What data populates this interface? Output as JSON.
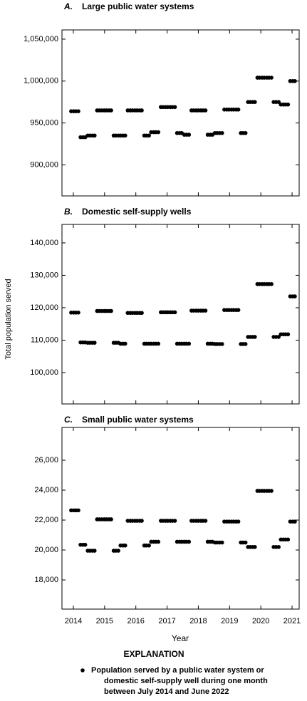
{
  "chart_data": [
    {
      "type": "scatter",
      "label": "A.",
      "title": "Large public water systems",
      "color": "#000000",
      "x": [
        2013.93,
        2014.01,
        2014.08,
        2014.16,
        2014.23,
        2014.31,
        2014.38,
        2014.46,
        2014.53,
        2014.61,
        2014.68,
        2014.76,
        2014.83,
        2014.91,
        2014.99,
        2015.06,
        2015.14,
        2015.21,
        2015.29,
        2015.36,
        2015.44,
        2015.51,
        2015.59,
        2015.66,
        2015.74,
        2015.82,
        2015.89,
        2015.97,
        2016.04,
        2016.12,
        2016.19,
        2016.27,
        2016.34,
        2016.42,
        2016.49,
        2016.57,
        2016.64,
        2016.72,
        2016.8,
        2016.87,
        2016.95,
        2017.02,
        2017.1,
        2017.17,
        2017.25,
        2017.32,
        2017.4,
        2017.47,
        2017.55,
        2017.62,
        2017.7,
        2017.78,
        2017.85,
        2017.93,
        2018.0,
        2018.08,
        2018.15,
        2018.23,
        2018.3,
        2018.38,
        2018.45,
        2018.53,
        2018.6,
        2018.68,
        2018.76,
        2018.83,
        2018.91,
        2018.98,
        2019.06,
        2019.13,
        2019.21,
        2019.28,
        2019.36,
        2019.43,
        2019.51,
        2019.59,
        2019.66,
        2019.74,
        2019.81,
        2019.89,
        2019.96,
        2020.04,
        2020.11,
        2020.19,
        2020.26,
        2020.34,
        2020.41,
        2020.49,
        2020.57,
        2020.64,
        2020.72,
        2020.79,
        2020.87,
        2020.94,
        2021.02,
        2021.09
      ],
      "values": [
        964000,
        964000,
        964000,
        964000,
        933000,
        933000,
        933000,
        935000,
        935000,
        935000,
        935000,
        965000,
        965000,
        965000,
        965000,
        965000,
        965000,
        965000,
        935000,
        935000,
        935000,
        935000,
        935000,
        935000,
        965000,
        965000,
        965000,
        965000,
        965000,
        965000,
        965000,
        935000,
        935000,
        935000,
        939000,
        939000,
        939000,
        939000,
        969000,
        969000,
        969000,
        969000,
        969000,
        969000,
        969000,
        938000,
        938000,
        938000,
        936000,
        936000,
        936000,
        965000,
        965000,
        965000,
        965000,
        965000,
        965000,
        965000,
        936000,
        936000,
        936000,
        938000,
        938000,
        938000,
        938000,
        966000,
        966000,
        966000,
        966000,
        966000,
        966000,
        966000,
        938000,
        938000,
        938000,
        975000,
        975000,
        975000,
        975000,
        1004000,
        1004000,
        1004000,
        1004000,
        1004000,
        1004000,
        1004000,
        975000,
        975000,
        975000,
        972000,
        972000,
        972000,
        972000,
        1000000,
        1000000,
        1000000
      ],
      "xlim": [
        2013.636,
        2021.227
      ],
      "xticks": [
        2014,
        2015,
        2016,
        2017,
        2018,
        2019,
        2020,
        2021
      ],
      "ylim": [
        863000,
        1061000
      ],
      "yticks": [
        {
          "value": 900000,
          "label": "900,000"
        },
        {
          "value": 950000,
          "label": "950,000"
        },
        {
          "value": 1000000,
          "label": "1,000,000"
        },
        {
          "value": 1050000,
          "label": "1,050,000"
        }
      ]
    },
    {
      "type": "scatter",
      "label": "B.",
      "title": "Domestic self-supply wells",
      "color": "#000000",
      "x": [
        2013.93,
        2014.01,
        2014.08,
        2014.16,
        2014.23,
        2014.31,
        2014.38,
        2014.46,
        2014.53,
        2014.61,
        2014.68,
        2014.76,
        2014.83,
        2014.91,
        2014.99,
        2015.06,
        2015.14,
        2015.21,
        2015.29,
        2015.36,
        2015.44,
        2015.51,
        2015.59,
        2015.66,
        2015.74,
        2015.82,
        2015.89,
        2015.97,
        2016.04,
        2016.12,
        2016.19,
        2016.27,
        2016.34,
        2016.42,
        2016.49,
        2016.57,
        2016.64,
        2016.72,
        2016.8,
        2016.87,
        2016.95,
        2017.02,
        2017.1,
        2017.17,
        2017.25,
        2017.32,
        2017.4,
        2017.47,
        2017.55,
        2017.62,
        2017.7,
        2017.78,
        2017.85,
        2017.93,
        2018.0,
        2018.08,
        2018.15,
        2018.23,
        2018.3,
        2018.38,
        2018.45,
        2018.53,
        2018.6,
        2018.68,
        2018.76,
        2018.83,
        2018.91,
        2018.98,
        2019.06,
        2019.13,
        2019.21,
        2019.28,
        2019.36,
        2019.43,
        2019.51,
        2019.59,
        2019.66,
        2019.74,
        2019.81,
        2019.89,
        2019.96,
        2020.04,
        2020.11,
        2020.19,
        2020.26,
        2020.34,
        2020.41,
        2020.49,
        2020.57,
        2020.64,
        2020.72,
        2020.79,
        2020.87,
        2020.94,
        2021.02,
        2021.09
      ],
      "values": [
        118500,
        118500,
        118500,
        118500,
        109300,
        109300,
        109300,
        109200,
        109200,
        109200,
        109200,
        119000,
        119000,
        119000,
        119000,
        119000,
        119000,
        119000,
        109200,
        109200,
        109200,
        108900,
        108900,
        108900,
        118400,
        118400,
        118400,
        118400,
        118400,
        118400,
        118400,
        108900,
        108900,
        108900,
        108900,
        108900,
        108900,
        108900,
        118600,
        118600,
        118600,
        118600,
        118600,
        118600,
        118600,
        108900,
        108900,
        108900,
        108900,
        108900,
        108900,
        119100,
        119100,
        119100,
        119100,
        119100,
        119100,
        119100,
        108900,
        108900,
        108900,
        108800,
        108800,
        108800,
        108800,
        119300,
        119300,
        119300,
        119300,
        119300,
        119300,
        119300,
        108800,
        108800,
        108800,
        111000,
        111000,
        111000,
        111000,
        127300,
        127300,
        127300,
        127300,
        127300,
        127300,
        127300,
        111000,
        111000,
        111000,
        111800,
        111800,
        111800,
        111800,
        123500,
        123500,
        123500
      ],
      "xlim": [
        2013.636,
        2021.227
      ],
      "xticks": [
        2014,
        2015,
        2016,
        2017,
        2018,
        2019,
        2020,
        2021
      ],
      "ylim": [
        90330,
        145700
      ],
      "yticks": [
        {
          "value": 100000,
          "label": "100,000"
        },
        {
          "value": 110000,
          "label": "110,000"
        },
        {
          "value": 120000,
          "label": "120,000"
        },
        {
          "value": 130000,
          "label": "130,000"
        },
        {
          "value": 140000,
          "label": "140,000"
        }
      ]
    },
    {
      "type": "scatter",
      "label": "C.",
      "title": "Small public water systems",
      "color": "#000000",
      "x": [
        2013.93,
        2014.01,
        2014.08,
        2014.16,
        2014.23,
        2014.31,
        2014.38,
        2014.46,
        2014.53,
        2014.61,
        2014.68,
        2014.76,
        2014.83,
        2014.91,
        2014.99,
        2015.06,
        2015.14,
        2015.21,
        2015.29,
        2015.36,
        2015.44,
        2015.51,
        2015.59,
        2015.66,
        2015.74,
        2015.82,
        2015.89,
        2015.97,
        2016.04,
        2016.12,
        2016.19,
        2016.27,
        2016.34,
        2016.42,
        2016.49,
        2016.57,
        2016.64,
        2016.72,
        2016.8,
        2016.87,
        2016.95,
        2017.02,
        2017.1,
        2017.17,
        2017.25,
        2017.32,
        2017.4,
        2017.47,
        2017.55,
        2017.62,
        2017.7,
        2017.78,
        2017.85,
        2017.93,
        2018.0,
        2018.08,
        2018.15,
        2018.23,
        2018.3,
        2018.38,
        2018.45,
        2018.53,
        2018.6,
        2018.68,
        2018.76,
        2018.83,
        2018.91,
        2018.98,
        2019.06,
        2019.13,
        2019.21,
        2019.28,
        2019.36,
        2019.43,
        2019.51,
        2019.59,
        2019.66,
        2019.74,
        2019.81,
        2019.89,
        2019.96,
        2020.04,
        2020.11,
        2020.19,
        2020.26,
        2020.34,
        2020.41,
        2020.49,
        2020.57,
        2020.64,
        2020.72,
        2020.79,
        2020.87,
        2020.94,
        2021.02,
        2021.09
      ],
      "values": [
        22650,
        22650,
        22650,
        22650,
        20350,
        20350,
        20350,
        19950,
        19950,
        19950,
        19950,
        22050,
        22050,
        22050,
        22050,
        22050,
        22050,
        22050,
        19950,
        19950,
        19950,
        20300,
        20300,
        20300,
        21950,
        21950,
        21950,
        21950,
        21950,
        21950,
        21950,
        20300,
        20300,
        20300,
        20550,
        20550,
        20550,
        20550,
        21950,
        21950,
        21950,
        21950,
        21950,
        21950,
        21950,
        20550,
        20550,
        20550,
        20550,
        20550,
        20550,
        21950,
        21950,
        21950,
        21950,
        21950,
        21950,
        21950,
        20550,
        20550,
        20550,
        20500,
        20500,
        20500,
        20500,
        21900,
        21900,
        21900,
        21900,
        21900,
        21900,
        21900,
        20500,
        20500,
        20500,
        20200,
        20200,
        20200,
        20200,
        23950,
        23950,
        23950,
        23950,
        23950,
        23950,
        23950,
        20200,
        20200,
        20200,
        20700,
        20700,
        20700,
        20700,
        21900,
        21900,
        21900
      ],
      "xlim": [
        2013.636,
        2021.227
      ],
      "xticks": [
        2014,
        2015,
        2016,
        2017,
        2018,
        2019,
        2020,
        2021
      ],
      "ylim": [
        16050,
        28190
      ],
      "yticks": [
        {
          "value": 18000,
          "label": "18,000"
        },
        {
          "value": 20000,
          "label": "20,000"
        },
        {
          "value": 22000,
          "label": "22,000"
        },
        {
          "value": 24000,
          "label": "24,000"
        },
        {
          "value": 26000,
          "label": "26,000"
        }
      ]
    }
  ],
  "x_label": "Year",
  "y_label": "Total population served",
  "legend": {
    "title": "EXPLANATION",
    "lines": [
      "Population served by a public water system or",
      "domestic self-supply well during one month",
      "between July 2014 and June 2022"
    ]
  }
}
